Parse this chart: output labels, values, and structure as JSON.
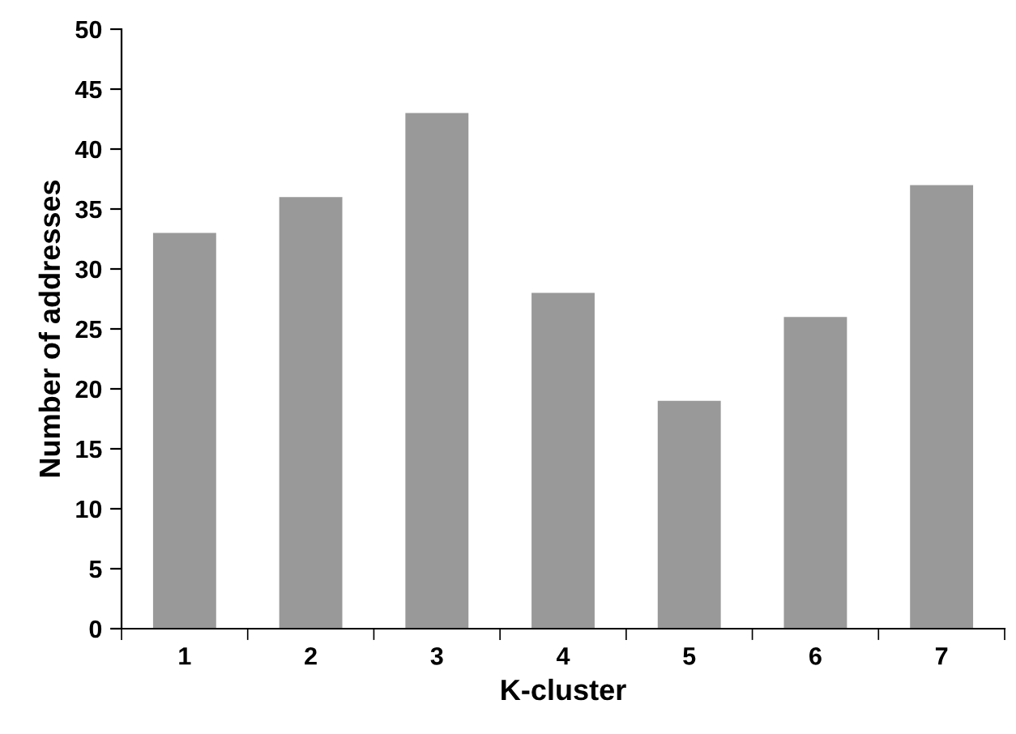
{
  "chart_data": {
    "type": "bar",
    "xlabel": "K-cluster",
    "ylabel": "Number of addresses",
    "categories": [
      "1",
      "2",
      "3",
      "4",
      "5",
      "6",
      "7"
    ],
    "values": [
      33,
      36,
      43,
      28,
      19,
      26,
      37
    ],
    "color": "#999999",
    "ylim": [
      0,
      50
    ],
    "yticks": [
      0,
      5,
      10,
      15,
      20,
      25,
      30,
      35,
      40,
      45,
      50
    ],
    "grid": false,
    "legend": false
  }
}
